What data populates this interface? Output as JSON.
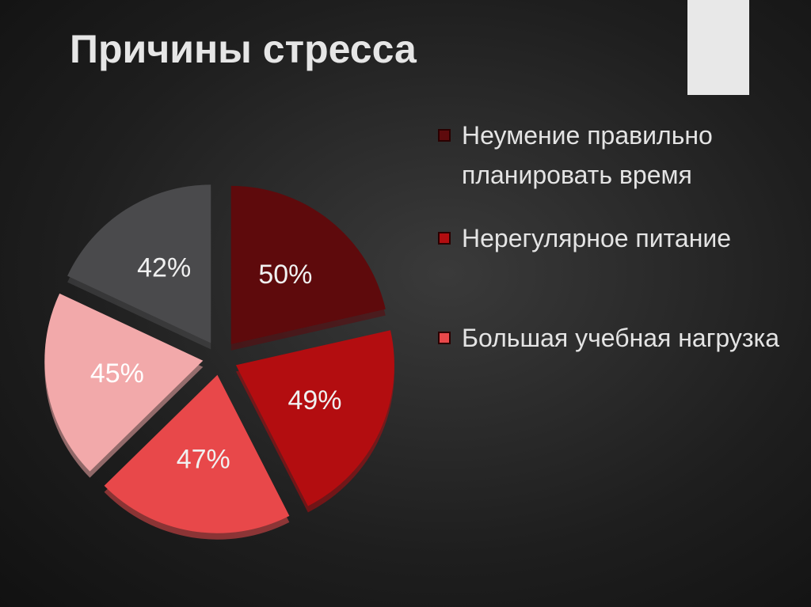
{
  "chart_data": {
    "type": "pie",
    "title": "Причины стресса",
    "categories": [
      "Неумение правильно планировать время",
      "Нерегулярное питание",
      "Большая учебная нагрузка",
      null,
      null
    ],
    "values": [
      50,
      49,
      47,
      45,
      42
    ],
    "value_labels": [
      "50%",
      "49%",
      "47%",
      "45%",
      "42%"
    ],
    "colors": [
      "#5e0a0c",
      "#b30d10",
      "#e8484a",
      "#f2a9aa",
      "#4a4a4c"
    ]
  }
}
